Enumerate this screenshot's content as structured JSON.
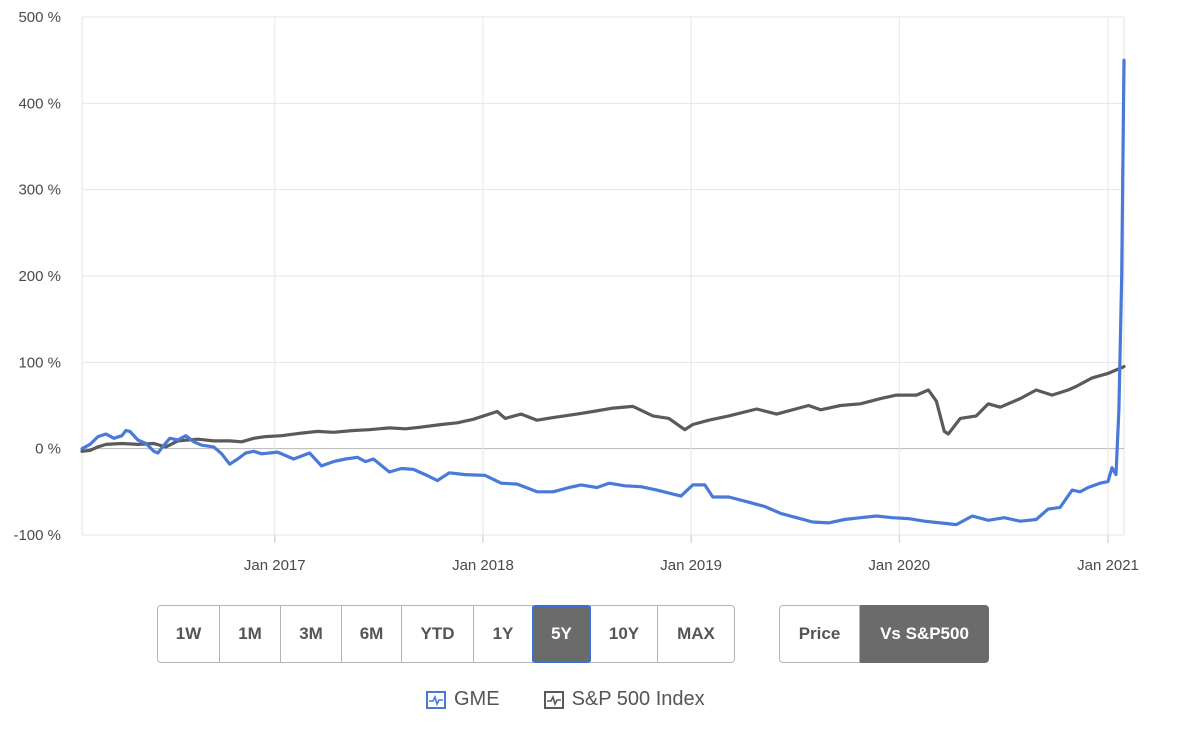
{
  "chart_data": {
    "type": "line",
    "y_unit": "%",
    "ylim": [
      -100,
      500
    ],
    "y_ticks": [
      500,
      400,
      300,
      200,
      100,
      0,
      -100
    ],
    "y_tick_labels": [
      "500 %",
      "400 %",
      "300 %",
      "200 %",
      "100 %",
      "0 %",
      "-100 %"
    ],
    "x_range": [
      "2016-01-29",
      "2021-01-29"
    ],
    "x_ticks": [
      {
        "date": "2017-01-01",
        "label": "Jan 2017"
      },
      {
        "date": "2018-01-01",
        "label": "Jan 2018"
      },
      {
        "date": "2019-01-01",
        "label": "Jan 2019"
      },
      {
        "date": "2020-01-01",
        "label": "Jan 2020"
      },
      {
        "date": "2021-01-01",
        "label": "Jan 2021"
      }
    ],
    "grid": true,
    "legend_position": "bottom",
    "series": [
      {
        "name": "GME",
        "color": "#4a7ad8",
        "points": [
          [
            "2016-01-29",
            0
          ],
          [
            "2016-02-12",
            5
          ],
          [
            "2016-02-26",
            14
          ],
          [
            "2016-03-11",
            17
          ],
          [
            "2016-03-25",
            12
          ],
          [
            "2016-04-08",
            15
          ],
          [
            "2016-04-15",
            21
          ],
          [
            "2016-04-22",
            20
          ],
          [
            "2016-05-06",
            10
          ],
          [
            "2016-05-20",
            6
          ],
          [
            "2016-06-03",
            -3
          ],
          [
            "2016-06-10",
            -5
          ],
          [
            "2016-06-17",
            1
          ],
          [
            "2016-07-01",
            12
          ],
          [
            "2016-07-15",
            10
          ],
          [
            "2016-07-29",
            15
          ],
          [
            "2016-08-12",
            8
          ],
          [
            "2016-08-26",
            4
          ],
          [
            "2016-09-16",
            2
          ],
          [
            "2016-09-30",
            -6
          ],
          [
            "2016-10-14",
            -18
          ],
          [
            "2016-10-28",
            -12
          ],
          [
            "2016-11-11",
            -5
          ],
          [
            "2016-11-25",
            -3
          ],
          [
            "2016-12-09",
            -6
          ],
          [
            "2017-01-06",
            -4
          ],
          [
            "2017-02-03",
            -12
          ],
          [
            "2017-03-03",
            -5
          ],
          [
            "2017-03-24",
            -20
          ],
          [
            "2017-04-14",
            -15
          ],
          [
            "2017-05-05",
            -12
          ],
          [
            "2017-05-26",
            -10
          ],
          [
            "2017-06-09",
            -15
          ],
          [
            "2017-06-23",
            -12
          ],
          [
            "2017-07-21",
            -27
          ],
          [
            "2017-08-11",
            -23
          ],
          [
            "2017-09-01",
            -24
          ],
          [
            "2017-09-22",
            -30
          ],
          [
            "2017-10-13",
            -37
          ],
          [
            "2017-11-03",
            -28
          ],
          [
            "2017-12-01",
            -30
          ],
          [
            "2018-01-05",
            -31
          ],
          [
            "2018-02-02",
            -40
          ],
          [
            "2018-03-02",
            -41
          ],
          [
            "2018-04-06",
            -50
          ],
          [
            "2018-05-04",
            -50
          ],
          [
            "2018-06-01",
            -45
          ],
          [
            "2018-06-22",
            -42
          ],
          [
            "2018-07-20",
            -45
          ],
          [
            "2018-08-10",
            -40
          ],
          [
            "2018-09-07",
            -43
          ],
          [
            "2018-10-05",
            -44
          ],
          [
            "2018-11-02",
            -48
          ],
          [
            "2018-12-14",
            -55
          ],
          [
            "2019-01-04",
            -42
          ],
          [
            "2019-01-25",
            -42
          ],
          [
            "2019-02-08",
            -56
          ],
          [
            "2019-03-08",
            -56
          ],
          [
            "2019-04-12",
            -62
          ],
          [
            "2019-05-10",
            -67
          ],
          [
            "2019-06-07",
            -75
          ],
          [
            "2019-07-05",
            -80
          ],
          [
            "2019-08-02",
            -85
          ],
          [
            "2019-08-30",
            -86
          ],
          [
            "2019-09-27",
            -82
          ],
          [
            "2019-10-25",
            -80
          ],
          [
            "2019-11-22",
            -78
          ],
          [
            "2019-12-20",
            -80
          ],
          [
            "2020-01-17",
            -81
          ],
          [
            "2020-02-14",
            -84
          ],
          [
            "2020-03-13",
            -86
          ],
          [
            "2020-04-10",
            -88
          ],
          [
            "2020-05-08",
            -78
          ],
          [
            "2020-06-05",
            -83
          ],
          [
            "2020-07-03",
            -80
          ],
          [
            "2020-07-31",
            -84
          ],
          [
            "2020-08-28",
            -82
          ],
          [
            "2020-09-18",
            -70
          ],
          [
            "2020-10-09",
            -68
          ],
          [
            "2020-10-30",
            -48
          ],
          [
            "2020-11-13",
            -50
          ],
          [
            "2020-11-27",
            -45
          ],
          [
            "2020-12-18",
            -40
          ],
          [
            "2021-01-01",
            -38
          ],
          [
            "2021-01-08",
            -22
          ],
          [
            "2021-01-15",
            -30
          ],
          [
            "2021-01-20",
            45
          ],
          [
            "2021-01-25",
            200
          ],
          [
            "2021-01-29",
            450
          ]
        ]
      },
      {
        "name": "S&P 500 Index",
        "color": "#5a5a5a",
        "points": [
          [
            "2016-01-29",
            -3
          ],
          [
            "2016-02-12",
            -2
          ],
          [
            "2016-02-26",
            2
          ],
          [
            "2016-03-11",
            5
          ],
          [
            "2016-04-08",
            6
          ],
          [
            "2016-05-06",
            5
          ],
          [
            "2016-06-03",
            6
          ],
          [
            "2016-06-24",
            2
          ],
          [
            "2016-07-15",
            9
          ],
          [
            "2016-08-19",
            11
          ],
          [
            "2016-09-16",
            9
          ],
          [
            "2016-10-14",
            9
          ],
          [
            "2016-11-04",
            8
          ],
          [
            "2016-11-25",
            12
          ],
          [
            "2016-12-16",
            14
          ],
          [
            "2017-01-13",
            15
          ],
          [
            "2017-02-17",
            18
          ],
          [
            "2017-03-17",
            20
          ],
          [
            "2017-04-14",
            19
          ],
          [
            "2017-05-19",
            21
          ],
          [
            "2017-06-16",
            22
          ],
          [
            "2017-07-21",
            24
          ],
          [
            "2017-08-18",
            23
          ],
          [
            "2017-09-15",
            25
          ],
          [
            "2017-10-20",
            28
          ],
          [
            "2017-11-17",
            30
          ],
          [
            "2017-12-15",
            34
          ],
          [
            "2018-01-26",
            43
          ],
          [
            "2018-02-09",
            35
          ],
          [
            "2018-03-09",
            40
          ],
          [
            "2018-04-06",
            33
          ],
          [
            "2018-05-04",
            36
          ],
          [
            "2018-06-15",
            40
          ],
          [
            "2018-07-13",
            43
          ],
          [
            "2018-08-17",
            47
          ],
          [
            "2018-09-21",
            49
          ],
          [
            "2018-10-26",
            38
          ],
          [
            "2018-11-23",
            35
          ],
          [
            "2018-12-21",
            22
          ],
          [
            "2019-01-04",
            28
          ],
          [
            "2019-02-01",
            33
          ],
          [
            "2019-03-08",
            38
          ],
          [
            "2019-04-26",
            46
          ],
          [
            "2019-05-31",
            40
          ],
          [
            "2019-07-26",
            50
          ],
          [
            "2019-08-16",
            45
          ],
          [
            "2019-09-20",
            50
          ],
          [
            "2019-10-25",
            52
          ],
          [
            "2019-11-29",
            58
          ],
          [
            "2019-12-27",
            62
          ],
          [
            "2020-01-31",
            62
          ],
          [
            "2020-02-21",
            68
          ],
          [
            "2020-03-06",
            55
          ],
          [
            "2020-03-20",
            20
          ],
          [
            "2020-03-27",
            17
          ],
          [
            "2020-04-17",
            35
          ],
          [
            "2020-05-15",
            38
          ],
          [
            "2020-06-05",
            52
          ],
          [
            "2020-06-26",
            48
          ],
          [
            "2020-07-31",
            58
          ],
          [
            "2020-08-28",
            68
          ],
          [
            "2020-09-25",
            62
          ],
          [
            "2020-10-23",
            68
          ],
          [
            "2020-11-06",
            72
          ],
          [
            "2020-12-04",
            82
          ],
          [
            "2020-12-31",
            87
          ],
          [
            "2021-01-22",
            93
          ],
          [
            "2021-01-29",
            95
          ]
        ]
      }
    ]
  },
  "controls": {
    "ranges": [
      {
        "label": "1W",
        "active": false
      },
      {
        "label": "1M",
        "active": false
      },
      {
        "label": "3M",
        "active": false
      },
      {
        "label": "6M",
        "active": false
      },
      {
        "label": "YTD",
        "active": false
      },
      {
        "label": "1Y",
        "active": false
      },
      {
        "label": "5Y",
        "active": true
      },
      {
        "label": "10Y",
        "active": false
      },
      {
        "label": "MAX",
        "active": false
      }
    ],
    "price_label": "Price",
    "vs_label": "Vs S&P500"
  },
  "legend": {
    "gme_label": "GME",
    "sp_label": "S&P 500 Index"
  }
}
